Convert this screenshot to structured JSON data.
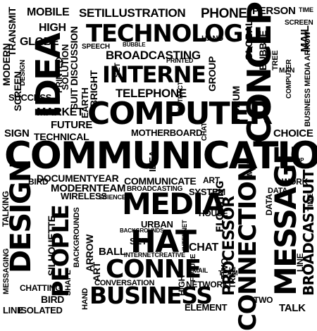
{
  "palette": {
    "background": "#ffffff",
    "ink": "#000000"
  },
  "words": {
    "communication_main": "COMMUNICATION",
    "technology": "TECHNOLOG",
    "internet": "INTERNE",
    "computer": "COMPUTER",
    "media": "MEDIA",
    "hat": "HAT",
    "connect_big": "CONNE",
    "business": "BUSINESS",
    "idea": "IDEA",
    "concept": "CONCEP",
    "message": "MESSAGE",
    "connection": "CONNECTION",
    "design": "DESIGN",
    "people": "PEOPLE",
    "mobile": "MOBILE",
    "illustration": "SETILLUSTRATION",
    "phone": "PHONE",
    "person": "PERSON",
    "high": "HIGH",
    "globe": "GLOBE",
    "broadcasting": "BROADCASTING",
    "telephone": "TELEPHONE",
    "motherboard": "MOTHERBOARD",
    "technical": "TECHNICAL",
    "market": "MARKET",
    "future": "FUTURE",
    "sign": "SIGN",
    "choice": "CHOICE",
    "global": "GLOBAL",
    "forum": "FORUM",
    "documentyear": "DOCUMENTYEAR",
    "modernteam": "MODERNTEAM",
    "communicate": "COMMUNICATE",
    "broadcasting2": "BROADCASTING",
    "system": "SYSTEM",
    "work": "WORK",
    "conversation": "CONVERSATION",
    "element": "ELEMENT",
    "bird": "BIRD",
    "isolated": "ISOLATED",
    "line": "LINE",
    "chatting": "CHATTING",
    "silhouette": "SILHOUETTE",
    "talking": "TALKING",
    "messaging": "MESSAGING",
    "network": "NETWORK",
    "processor": "PROCESSOR",
    "broadcastsuit": "BROADCASTSUIT",
    "chat": "CHAT",
    "talk": "TALK",
    "wireless": "WIRELESS",
    "success": "SUCCESS",
    "screen": "SCREEN",
    "modern": "MODERN",
    "urban": "URBAN",
    "tree": "TREE",
    "set": "SET",
    "ball": "BALL",
    "art": "ART",
    "house": "HOUSE",
    "two": "TWO",
    "speech": "SPEECH",
    "email": "EMAIL",
    "bubble": "BUBBLE",
    "team": "TEAM",
    "printed": "PRINTED",
    "solution": "SOLUTION",
    "suit_discussion": "SUIT DISCUSSION",
    "mail": "MAIL",
    "time": "TIME",
    "laptop": "LAPTOP",
    "group": "GROUP",
    "earth": "EARTH",
    "bright": "BRIGHT",
    "hand": "HAND",
    "arrow": "ARROW",
    "floating": "FLOATING",
    "data": "DATA",
    "shape": "SHAPE",
    "transmit": "TRANSMIT",
    "man": "MAN",
    "future2": "FUTURE",
    "creative": "INTERNETCREATIVE",
    "backgrounds": "BACKGROUNDS",
    "science": "SCIENCE",
    "business_media": "BUSINESS MEDIA ARROW",
    "computer_small": "COMPUTER",
    "internet_small": "INTERNET",
    "abstract": "ABSTRACT"
  }
}
